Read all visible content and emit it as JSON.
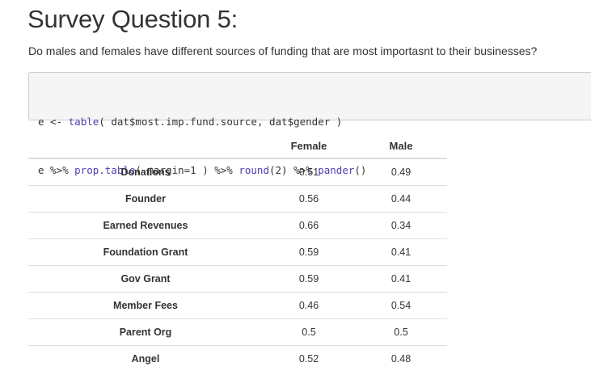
{
  "heading": {
    "title": "Survey Question 5:",
    "question": "Do males and females have different sources of funding that are most importasnt to their businesses?"
  },
  "code": {
    "line1": {
      "prefix": "e <- ",
      "fn1": "table",
      "args": "( dat$most.imp.fund.source, dat$gender )"
    },
    "line2": {
      "prefix": "e %>% ",
      "fn1": "prop.table",
      "args1": "( margin=1 ) %>% ",
      "fn2": "round",
      "args2": "(2) %>% ",
      "fn3": "pander",
      "args3": "()"
    }
  },
  "table": {
    "headers": [
      "",
      "Female",
      "Male"
    ],
    "rows": [
      {
        "label": "Donations",
        "female": "0.51",
        "male": "0.49"
      },
      {
        "label": "Founder",
        "female": "0.56",
        "male": "0.44"
      },
      {
        "label": "Earned Revenues",
        "female": "0.66",
        "male": "0.34"
      },
      {
        "label": "Foundation Grant",
        "female": "0.59",
        "male": "0.41"
      },
      {
        "label": "Gov Grant",
        "female": "0.59",
        "male": "0.41"
      },
      {
        "label": "Member Fees",
        "female": "0.46",
        "male": "0.54"
      },
      {
        "label": "Parent Org",
        "female": "0.5",
        "male": "0.5"
      },
      {
        "label": "Angel",
        "female": "0.52",
        "male": "0.48"
      }
    ]
  },
  "colors": {
    "code_function": "#4c3fb0",
    "code_background": "#f5f5f5",
    "table_rule": "#dddddd"
  }
}
